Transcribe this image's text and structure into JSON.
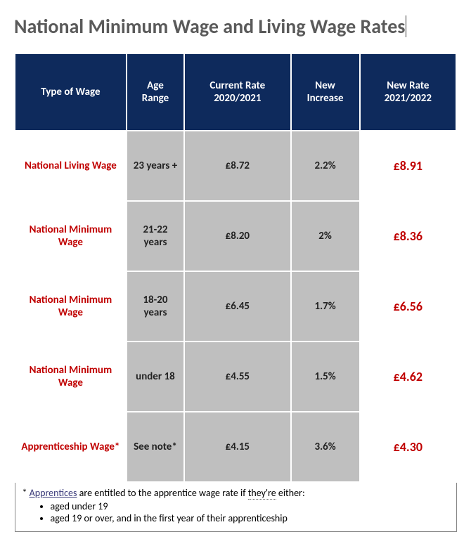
{
  "title": "National Minimum Wage and Living Wage Rates",
  "colors": {
    "header_bg": "#0e2a5c",
    "header_text": "#ffffff",
    "type_text": "#c00000",
    "newrate_text": "#c00000",
    "data_bg": "#bfbfbf",
    "title_color": "#5a5a5a"
  },
  "table": {
    "columns": [
      "Type of Wage",
      "Age Range",
      "Current Rate 2020/2021",
      "New Increase",
      "New Rate 2021/2022"
    ],
    "rows": [
      {
        "type": "National Living Wage",
        "age": "23 years +",
        "current": "£8.72",
        "increase": "2.2%",
        "newrate": "£8.91"
      },
      {
        "type": "National Minimum Wage",
        "age": "21-22 years",
        "current": "£8.20",
        "increase": "2%",
        "newrate": "£8.36"
      },
      {
        "type": "National Minimum Wage",
        "age": "18-20 years",
        "current": "£6.45",
        "increase": "1.7%",
        "newrate": "£6.56"
      },
      {
        "type": "National Minimum Wage",
        "age": "under 18",
        "current": "£4.55",
        "increase": "1.5%",
        "newrate": "£4.62"
      },
      {
        "type": "Apprenticeship Wage*",
        "age": "See note*",
        "current": "£4.15",
        "increase": "3.6%",
        "newrate": "£4.30"
      }
    ]
  },
  "footnote": {
    "prefix": "* ",
    "linkword": "Apprentices",
    "mid1": " are entitled to the apprentice wage rate if ",
    "dotted": "they're",
    "mid2": " either:",
    "bullets": [
      "aged under 19",
      "aged 19 or over, and in the first year of their apprenticeship"
    ]
  }
}
